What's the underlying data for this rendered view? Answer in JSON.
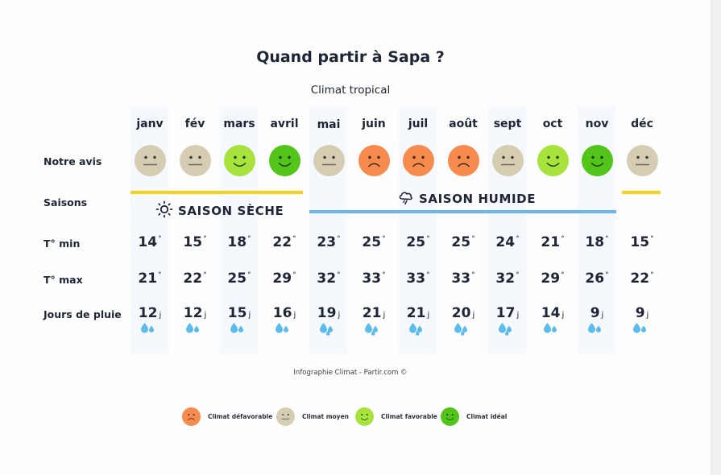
{
  "header": {
    "title": "Quand partir à Sapa ?",
    "subtitle": "Climat tropical"
  },
  "row_labels": {
    "rating": "Notre avis",
    "seasons": "Saisons",
    "tmin": "T° min",
    "tmax": "T° max",
    "rain": "Jours de pluie"
  },
  "seasons": {
    "dry": {
      "label": "SAISON SÈCHE",
      "icon": "sun-icon",
      "color": "#f7d117"
    },
    "wet": {
      "label": "SAISON HUMIDE",
      "icon": "rain-cloud-icon",
      "color": "#6cb4ee"
    }
  },
  "units": {
    "degree": "°",
    "day": "j"
  },
  "colors": {
    "unfavorable": "#f68b4d",
    "average": "#d4cdb2",
    "favorable": "#a8e23c",
    "ideal": "#52c41a",
    "drop": "#5bbcec",
    "band": "#f5f8fd"
  },
  "months": [
    {
      "name": "janv",
      "rating": "average",
      "tmin": "14",
      "tmax": "21",
      "rain": "12",
      "drops": 2
    },
    {
      "name": "fév",
      "rating": "average",
      "tmin": "15",
      "tmax": "22",
      "rain": "12",
      "drops": 2
    },
    {
      "name": "mars",
      "rating": "favorable",
      "tmin": "18",
      "tmax": "25",
      "rain": "15",
      "drops": 2
    },
    {
      "name": "avril",
      "rating": "ideal",
      "tmin": "22",
      "tmax": "29",
      "rain": "16",
      "drops": 2
    },
    {
      "name": "mai",
      "rating": "average",
      "tmin": "23",
      "tmax": "32",
      "rain": "19",
      "drops": 3
    },
    {
      "name": "juin",
      "rating": "unfavorable",
      "tmin": "25",
      "tmax": "33",
      "rain": "21",
      "drops": 3
    },
    {
      "name": "juil",
      "rating": "unfavorable",
      "tmin": "25",
      "tmax": "33",
      "rain": "21",
      "drops": 3
    },
    {
      "name": "août",
      "rating": "unfavorable",
      "tmin": "25",
      "tmax": "33",
      "rain": "20",
      "drops": 3
    },
    {
      "name": "sept",
      "rating": "average",
      "tmin": "24",
      "tmax": "32",
      "rain": "17",
      "drops": 3
    },
    {
      "name": "oct",
      "rating": "favorable",
      "tmin": "21",
      "tmax": "29",
      "rain": "14",
      "drops": 2
    },
    {
      "name": "nov",
      "rating": "ideal",
      "tmin": "18",
      "tmax": "26",
      "rain": "9",
      "drops": 2
    },
    {
      "name": "déc",
      "rating": "average",
      "tmin": "15",
      "tmax": "22",
      "rain": "9",
      "drops": 2
    }
  ],
  "footer": {
    "credit": "Infographie Climat - Partir.com ©"
  },
  "legend": [
    {
      "rating": "unfavorable",
      "label": "Climat défavorable"
    },
    {
      "rating": "average",
      "label": "Climat moyen"
    },
    {
      "rating": "favorable",
      "label": "Climat favorable"
    },
    {
      "rating": "ideal",
      "label": "Climat idéal"
    }
  ],
  "chart_data": {
    "type": "table",
    "title": "Quand partir à Sapa ?",
    "subtitle": "Climat tropical",
    "categories": [
      "janv",
      "fév",
      "mars",
      "avril",
      "mai",
      "juin",
      "juil",
      "août",
      "sept",
      "oct",
      "nov",
      "déc"
    ],
    "series": [
      {
        "name": "T° min",
        "unit": "°C",
        "values": [
          14,
          15,
          18,
          22,
          23,
          25,
          25,
          25,
          24,
          21,
          18,
          15
        ]
      },
      {
        "name": "T° max",
        "unit": "°C",
        "values": [
          21,
          22,
          25,
          29,
          32,
          33,
          33,
          33,
          32,
          29,
          26,
          22
        ]
      },
      {
        "name": "Jours de pluie",
        "unit": "j",
        "values": [
          12,
          12,
          15,
          16,
          19,
          21,
          21,
          20,
          17,
          14,
          9,
          9
        ]
      },
      {
        "name": "Notre avis",
        "values": [
          "Climat moyen",
          "Climat moyen",
          "Climat favorable",
          "Climat idéal",
          "Climat moyen",
          "Climat défavorable",
          "Climat défavorable",
          "Climat défavorable",
          "Climat moyen",
          "Climat favorable",
          "Climat idéal",
          "Climat moyen"
        ]
      }
    ],
    "seasons": [
      {
        "name": "Saison sèche",
        "months": [
          "janv",
          "fév",
          "mars",
          "avril",
          "déc"
        ]
      },
      {
        "name": "Saison humide",
        "months": [
          "mai",
          "juin",
          "juil",
          "août",
          "sept",
          "oct",
          "nov"
        ]
      }
    ],
    "legend": [
      "Climat défavorable",
      "Climat moyen",
      "Climat favorable",
      "Climat idéal"
    ],
    "annotation": "Infographie Climat - Partir.com ©"
  }
}
